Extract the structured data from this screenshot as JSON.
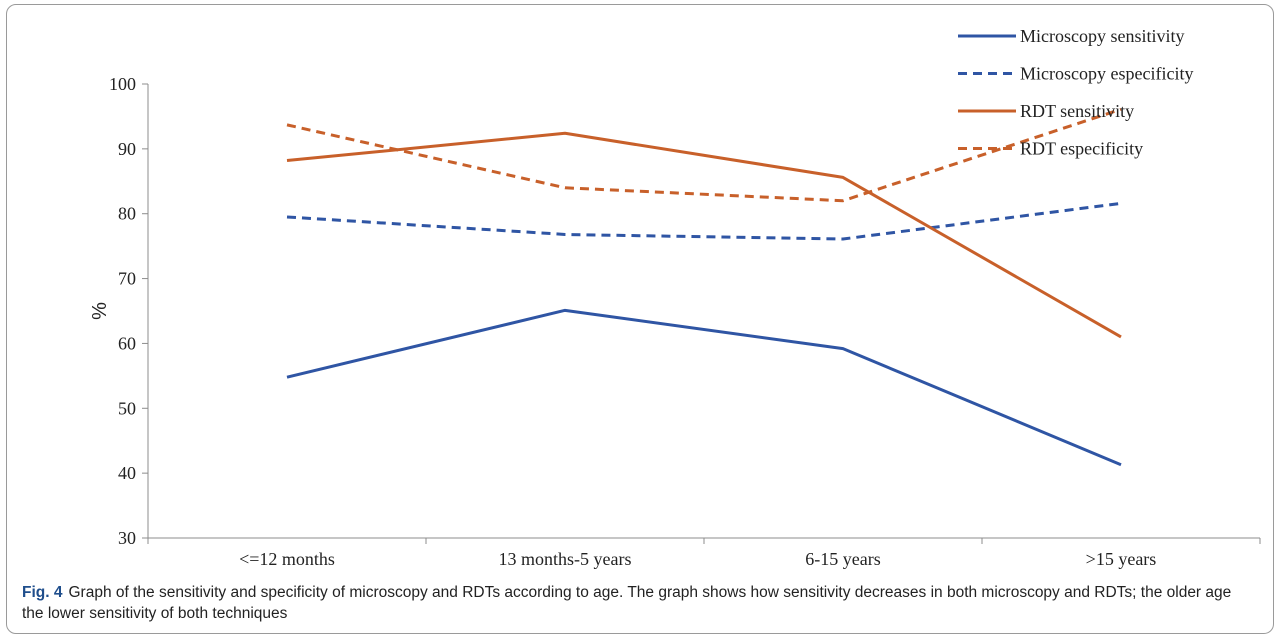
{
  "figure": {
    "label": "Fig. 4",
    "caption": "Graph of the sensitivity and specificity of microscopy and RDTs according to age. The graph shows how sensitivity decreases in both microscopy and RDTs; the older age the lower sensitivity of both techniques"
  },
  "chart_data": {
    "type": "line",
    "title": "",
    "xlabel": "",
    "ylabel": "%",
    "categories": [
      "<=12 months",
      "13 months-5 years",
      "6-15 years",
      ">15 years"
    ],
    "ylim": [
      30,
      100
    ],
    "yticks": [
      30,
      40,
      50,
      60,
      70,
      80,
      90,
      100
    ],
    "grid": false,
    "legend_position": "top-right",
    "series": [
      {
        "name": "Microscopy sensitivity",
        "values": [
          54.8,
          65.1,
          59.2,
          41.3
        ],
        "color": "#2f55a4",
        "dash": "solid"
      },
      {
        "name": "Microscopy especificity",
        "values": [
          79.5,
          76.8,
          76.1,
          81.6
        ],
        "color": "#2f55a4",
        "dash": "dashed"
      },
      {
        "name": "RDT sensitivity",
        "values": [
          88.2,
          92.4,
          85.6,
          61.0
        ],
        "color": "#c8602a",
        "dash": "solid"
      },
      {
        "name": "RDT especificity",
        "values": [
          93.7,
          84.0,
          82.0,
          96.1
        ],
        "color": "#c8602a",
        "dash": "dashed"
      }
    ]
  }
}
